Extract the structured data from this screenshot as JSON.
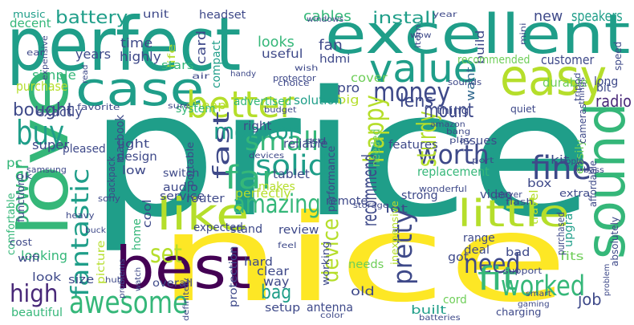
{
  "colors": {
    "yellow": "#fde725",
    "lime": "#b5de2b",
    "green": "#6ece58",
    "seagreen": "#35b779",
    "teal": "#1f9e89",
    "blueteal": "#26828e",
    "blue": "#31688e",
    "indigo": "#3e4989",
    "purple": "#482878",
    "darkpurple": "#440154",
    "background": "#ffffff"
  },
  "words": [
    {
      "id": "price",
      "text": "price"
    },
    {
      "id": "nice",
      "text": "nice"
    },
    {
      "id": "perfect",
      "text": "perfect"
    },
    {
      "id": "excellent",
      "text": "excellent"
    },
    {
      "id": "love",
      "text": "love"
    },
    {
      "id": "best",
      "text": "best"
    },
    {
      "id": "sound",
      "text": "sound"
    },
    {
      "id": "easy",
      "text": "easy"
    },
    {
      "id": "case",
      "text": "case"
    },
    {
      "id": "like",
      "text": "like"
    },
    {
      "id": "value",
      "text": "value"
    },
    {
      "id": "better",
      "text": "better"
    },
    {
      "id": "little",
      "text": "little"
    },
    {
      "id": "awesome",
      "text": "awesome"
    },
    {
      "id": "buy",
      "text": "buy"
    },
    {
      "id": "fantastic",
      "text": "fantastic"
    },
    {
      "id": "money",
      "text": "money"
    },
    {
      "id": "amazing",
      "text": "amazing"
    },
    {
      "id": "solid",
      "text": "solid"
    },
    {
      "id": "worth",
      "text": "worth"
    },
    {
      "id": "small",
      "text": "small"
    },
    {
      "id": "fast",
      "text": "fast"
    },
    {
      "id": "far",
      "text": "far"
    },
    {
      "id": "happy",
      "text": "happy"
    },
    {
      "id": "pretty",
      "text": "pretty"
    },
    {
      "id": "device",
      "text": "device"
    },
    {
      "id": "fine",
      "text": "fine"
    },
    {
      "id": "worked",
      "text": "worked"
    },
    {
      "id": "need",
      "text": "need"
    },
    {
      "id": "fit",
      "text": "fit"
    },
    {
      "id": "high",
      "text": "high"
    },
    {
      "id": "power",
      "text": "power"
    },
    {
      "id": "set",
      "text": "set"
    },
    {
      "id": "monitor",
      "text": "monitor"
    },
    {
      "id": "battery",
      "text": "battery"
    },
    {
      "id": "install",
      "text": "install"
    },
    {
      "id": "sturdy",
      "text": "sturdy"
    },
    {
      "id": "mount",
      "text": "mount"
    },
    {
      "id": "recommend",
      "text": "recommend"
    },
    {
      "id": "bought",
      "text": "bought"
    },
    {
      "id": "bag",
      "text": "bag"
    },
    {
      "id": "lens",
      "text": "lens"
    },
    {
      "id": "radio",
      "text": "radio"
    },
    {
      "id": "job",
      "text": "job"
    },
    {
      "id": "cables",
      "text": "cables"
    },
    {
      "id": "speakers",
      "text": "speakers"
    },
    {
      "id": "new",
      "text": "new"
    },
    {
      "id": "card",
      "text": "card"
    },
    {
      "id": "looks",
      "text": "looks"
    },
    {
      "id": "fan",
      "text": "fan"
    },
    {
      "id": "build",
      "text": "build"
    },
    {
      "id": "time",
      "text": "time"
    },
    {
      "id": "years",
      "text": "years"
    },
    {
      "id": "highly",
      "text": "highly"
    },
    {
      "id": "useful",
      "text": "useful"
    },
    {
      "id": "hdmi",
      "text": "hdmi"
    },
    {
      "id": "compact",
      "text": "compact"
    },
    {
      "id": "life",
      "text": "life"
    },
    {
      "id": "simple",
      "text": "simple"
    },
    {
      "id": "purchase",
      "text": "purchase"
    },
    {
      "id": "decent",
      "text": "decent"
    },
    {
      "id": "unit",
      "text": "unit"
    },
    {
      "id": "headset",
      "text": "headset"
    },
    {
      "id": "music",
      "text": "music"
    },
    {
      "id": "stars",
      "text": "stars"
    },
    {
      "id": "cover",
      "text": "cover"
    },
    {
      "id": "recommended",
      "text": "recommended"
    },
    {
      "id": "customer",
      "text": "customer"
    },
    {
      "id": "durable",
      "text": "durable"
    },
    {
      "id": "long",
      "text": "long"
    },
    {
      "id": "want",
      "text": "want"
    },
    {
      "id": "bit",
      "text": "bit"
    },
    {
      "id": "thing",
      "text": "thing"
    },
    {
      "id": "pro",
      "text": "pro"
    },
    {
      "id": "big",
      "text": "big"
    },
    {
      "id": "solution",
      "text": "solution"
    },
    {
      "id": "advertised",
      "text": "advertised"
    },
    {
      "id": "cheap",
      "text": "cheap"
    },
    {
      "id": "system",
      "text": "system"
    },
    {
      "id": "exactly",
      "text": "exactly"
    },
    {
      "id": "super",
      "text": "super"
    },
    {
      "id": "pleased",
      "text": "pleased"
    },
    {
      "id": "light",
      "text": "light"
    },
    {
      "id": "design",
      "text": "design"
    },
    {
      "id": "low",
      "text": "low"
    },
    {
      "id": "macbook",
      "text": "macbook"
    },
    {
      "id": "comfortable",
      "text": "comfortable"
    },
    {
      "id": "pc",
      "text": "pc"
    },
    {
      "id": "portable",
      "text": "portable"
    },
    {
      "id": "switch",
      "text": "switch"
    },
    {
      "id": "audio",
      "text": "audio"
    },
    {
      "id": "service",
      "text": "service"
    },
    {
      "id": "router",
      "text": "router"
    },
    {
      "id": "tablet",
      "text": "tablet"
    },
    {
      "id": "reliable",
      "text": "reliable"
    },
    {
      "id": "right",
      "text": "right"
    },
    {
      "id": "perfectly",
      "text": "perfectly"
    },
    {
      "id": "makes",
      "text": "makes"
    },
    {
      "id": "remote",
      "text": "remote"
    },
    {
      "id": "strong",
      "text": "strong"
    },
    {
      "id": "lot",
      "text": "lot"
    },
    {
      "id": "video",
      "text": "video"
    },
    {
      "id": "box",
      "text": "box"
    },
    {
      "id": "kit",
      "text": "kit"
    },
    {
      "id": "easily",
      "text": "easily"
    },
    {
      "id": "issues",
      "text": "issues"
    },
    {
      "id": "features",
      "text": "features"
    },
    {
      "id": "replacement",
      "text": "replacement"
    },
    {
      "id": "needed",
      "text": "needed"
    },
    {
      "id": "performance",
      "text": "performance"
    },
    {
      "id": "range",
      "text": "range"
    },
    {
      "id": "deal",
      "text": "deal"
    },
    {
      "id": "got",
      "text": "got"
    },
    {
      "id": "bad",
      "text": "bad"
    },
    {
      "id": "fits",
      "text": "fits"
    },
    {
      "id": "upgrade",
      "text": "upgrade"
    },
    {
      "id": "travel",
      "text": "travel"
    },
    {
      "id": "inexpensive",
      "text": "inexpensive"
    },
    {
      "id": "needs",
      "text": "needs"
    },
    {
      "id": "working",
      "text": "working"
    },
    {
      "id": "clear",
      "text": "clear"
    },
    {
      "id": "way",
      "text": "way"
    },
    {
      "id": "hard",
      "text": "hard"
    },
    {
      "id": "stand",
      "text": "stand"
    },
    {
      "id": "review",
      "text": "review"
    },
    {
      "id": "expected",
      "text": "expected"
    },
    {
      "id": "cool",
      "text": "cool"
    },
    {
      "id": "home",
      "text": "home"
    },
    {
      "id": "picture",
      "text": "picture"
    },
    {
      "id": "looking",
      "text": "looking"
    },
    {
      "id": "look",
      "text": "look"
    },
    {
      "id": "size",
      "text": "size"
    },
    {
      "id": "overall",
      "text": "overall"
    },
    {
      "id": "protection",
      "text": "protection"
    },
    {
      "id": "setup",
      "text": "setup"
    },
    {
      "id": "antenna",
      "text": "antenna"
    },
    {
      "id": "old",
      "text": "old"
    },
    {
      "id": "built",
      "text": "built"
    },
    {
      "id": "cord",
      "text": "cord"
    },
    {
      "id": "beautiful",
      "text": "beautiful"
    },
    {
      "id": "cost",
      "text": "cost"
    },
    {
      "id": "wifi",
      "text": "wifi"
    },
    {
      "id": "charging",
      "text": "charging"
    },
    {
      "id": "support",
      "text": "support"
    },
    {
      "id": "absolutely",
      "text": "absolutely"
    },
    {
      "id": "extra",
      "text": "extra"
    },
    {
      "id": "purchased",
      "text": "purchased"
    },
    {
      "id": "affordable",
      "text": "affordable"
    },
    {
      "id": "cameras",
      "text": "cameras"
    },
    {
      "id": "speed",
      "text": "speed"
    },
    {
      "id": "tripod",
      "text": "tripod"
    },
    {
      "id": "quiet",
      "text": "quiet"
    },
    {
      "id": "port",
      "text": "port"
    },
    {
      "id": "sounds",
      "text": "sounds"
    },
    {
      "id": "wish",
      "text": "wish"
    },
    {
      "id": "choice",
      "text": "choice"
    },
    {
      "id": "protector",
      "text": "protector"
    },
    {
      "id": "air",
      "text": "air"
    },
    {
      "id": "handy",
      "text": "handy"
    },
    {
      "id": "wow",
      "text": "wow"
    },
    {
      "id": "windows",
      "text": "windows"
    },
    {
      "id": "item",
      "text": "item"
    },
    {
      "id": "year",
      "text": "year"
    },
    {
      "id": "mini",
      "text": "mini"
    },
    {
      "id": "expensive",
      "text": "expensive"
    },
    {
      "id": "ear",
      "text": "ear"
    },
    {
      "id": "favorite",
      "text": "favorite"
    },
    {
      "id": "sure",
      "text": "sure"
    },
    {
      "id": "budget",
      "text": "budget"
    },
    {
      "id": "ssd",
      "text": "ssd"
    },
    {
      "id": "amazon",
      "text": "amazon"
    },
    {
      "id": "bang",
      "text": "bang"
    },
    {
      "id": "play",
      "text": "play"
    },
    {
      "id": "backpack",
      "text": "backpack"
    },
    {
      "id": "devices",
      "text": "devices"
    },
    {
      "id": "samsung",
      "text": "samsung"
    },
    {
      "id": "ok",
      "text": "ok"
    },
    {
      "id": "function",
      "text": "function"
    },
    {
      "id": "sony",
      "text": "sony"
    },
    {
      "id": "heavy",
      "text": "heavy"
    },
    {
      "id": "storage",
      "text": "storage"
    },
    {
      "id": "wonderful",
      "text": "wonderful"
    },
    {
      "id": "player",
      "text": "player"
    },
    {
      "id": "flash",
      "text": "flash"
    },
    {
      "id": "apple",
      "text": "apple"
    },
    {
      "id": "bass",
      "text": "bass"
    },
    {
      "id": "things",
      "text": "things"
    },
    {
      "id": "gaming",
      "text": "gaming"
    },
    {
      "id": "smart",
      "text": "smart"
    },
    {
      "id": "problem",
      "text": "problem"
    },
    {
      "id": "problems",
      "text": "problems"
    },
    {
      "id": "hub",
      "text": "hub"
    },
    {
      "id": "watch",
      "text": "watch"
    },
    {
      "id": "feel",
      "text": "feel"
    },
    {
      "id": "definitely",
      "text": "definitely"
    },
    {
      "id": "color",
      "text": "color"
    },
    {
      "id": "batteries",
      "text": "batteries"
    },
    {
      "id": "read",
      "text": "read"
    },
    {
      "id": "buck",
      "text": "buck"
    }
  ]
}
